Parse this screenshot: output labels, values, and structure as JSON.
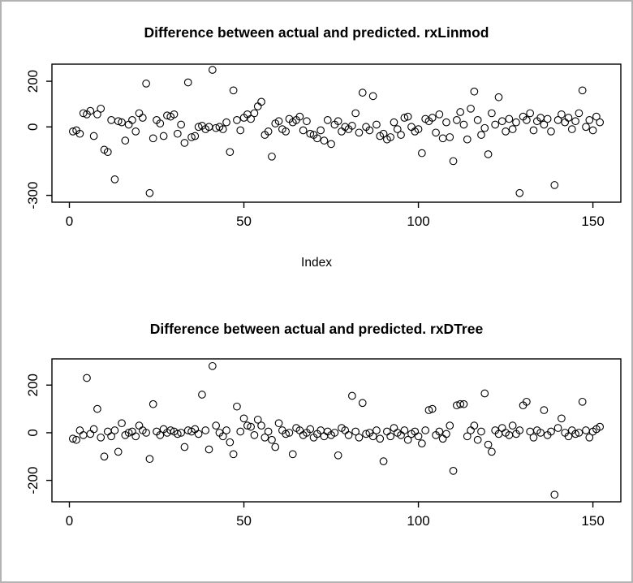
{
  "page": {
    "background": "#ffffff",
    "border_color": "#b3b3b3",
    "point_color": "#000000",
    "axis_color": "#000000"
  },
  "chart_data": [
    {
      "type": "scatter",
      "title": "Difference between actual and predicted. rxLinmod",
      "xlabel": "Index",
      "ylabel": "",
      "xlim": [
        -5,
        158
      ],
      "ylim": [
        -330,
        275
      ],
      "xticks": [
        0,
        50,
        100,
        150
      ],
      "yticks": [
        200,
        0,
        -300
      ],
      "grid": false,
      "legend": "none",
      "marker": "open-circle",
      "x_is_index": true,
      "values": [
        -20,
        -15,
        -30,
        60,
        55,
        70,
        -40,
        55,
        80,
        -100,
        -110,
        30,
        -230,
        25,
        20,
        -60,
        10,
        30,
        -20,
        60,
        40,
        190,
        -290,
        -50,
        30,
        15,
        -40,
        50,
        45,
        55,
        -30,
        10,
        -70,
        195,
        -45,
        -40,
        0,
        5,
        -10,
        0,
        250,
        -5,
        0,
        -10,
        20,
        -110,
        160,
        30,
        -15,
        40,
        55,
        35,
        60,
        90,
        110,
        -35,
        -20,
        -130,
        15,
        25,
        -10,
        -20,
        35,
        20,
        30,
        45,
        -15,
        25,
        -30,
        -35,
        -50,
        -15,
        -60,
        30,
        -75,
        10,
        25,
        -20,
        0,
        -10,
        5,
        60,
        -25,
        150,
        0,
        -15,
        135,
        10,
        -40,
        -30,
        -55,
        -45,
        20,
        -10,
        -35,
        40,
        45,
        0,
        -20,
        -10,
        -115,
        35,
        25,
        40,
        -25,
        55,
        -50,
        20,
        -45,
        -150,
        30,
        65,
        10,
        -55,
        80,
        155,
        30,
        -35,
        -5,
        -120,
        60,
        10,
        130,
        25,
        -20,
        35,
        -10,
        20,
        -290,
        45,
        30,
        60,
        -15,
        25,
        40,
        10,
        35,
        -20,
        -255,
        30,
        55,
        20,
        40,
        -10,
        25,
        60,
        160,
        0,
        30,
        -15,
        45,
        20
      ]
    },
    {
      "type": "scatter",
      "title": "Difference between actual and predicted. rxDTree",
      "xlabel": "",
      "ylabel": "",
      "xlim": [
        -5,
        158
      ],
      "ylim": [
        -290,
        310
      ],
      "xticks": [
        0,
        50,
        100,
        150
      ],
      "yticks": [
        200,
        0,
        -200
      ],
      "grid": false,
      "legend": "none",
      "marker": "open-circle",
      "x_is_index": true,
      "values": [
        -25,
        -30,
        10,
        -10,
        230,
        -5,
        15,
        100,
        -20,
        -100,
        5,
        -15,
        10,
        -80,
        40,
        -10,
        0,
        5,
        -15,
        30,
        10,
        0,
        -110,
        120,
        5,
        -10,
        15,
        0,
        10,
        5,
        -5,
        0,
        -60,
        10,
        5,
        15,
        -5,
        160,
        10,
        -70,
        280,
        30,
        0,
        -15,
        10,
        -40,
        -90,
        110,
        5,
        60,
        30,
        25,
        -10,
        55,
        30,
        -20,
        5,
        -30,
        -60,
        40,
        10,
        -5,
        0,
        -90,
        20,
        10,
        -10,
        0,
        15,
        -20,
        -5,
        10,
        -15,
        5,
        -10,
        0,
        -95,
        20,
        10,
        -10,
        155,
        5,
        -20,
        125,
        -5,
        0,
        -15,
        10,
        -25,
        -120,
        5,
        -15,
        20,
        0,
        -10,
        10,
        -30,
        -5,
        5,
        -15,
        -45,
        10,
        95,
        100,
        -10,
        5,
        -25,
        -5,
        30,
        -160,
        115,
        120,
        120,
        -15,
        10,
        30,
        -30,
        5,
        165,
        -50,
        -80,
        10,
        -5,
        20,
        0,
        -10,
        30,
        -5,
        10,
        115,
        130,
        5,
        -20,
        10,
        0,
        95,
        -10,
        5,
        -260,
        20,
        60,
        0,
        -15,
        10,
        -5,
        0,
        130,
        10,
        -20,
        5,
        15,
        25
      ]
    }
  ]
}
